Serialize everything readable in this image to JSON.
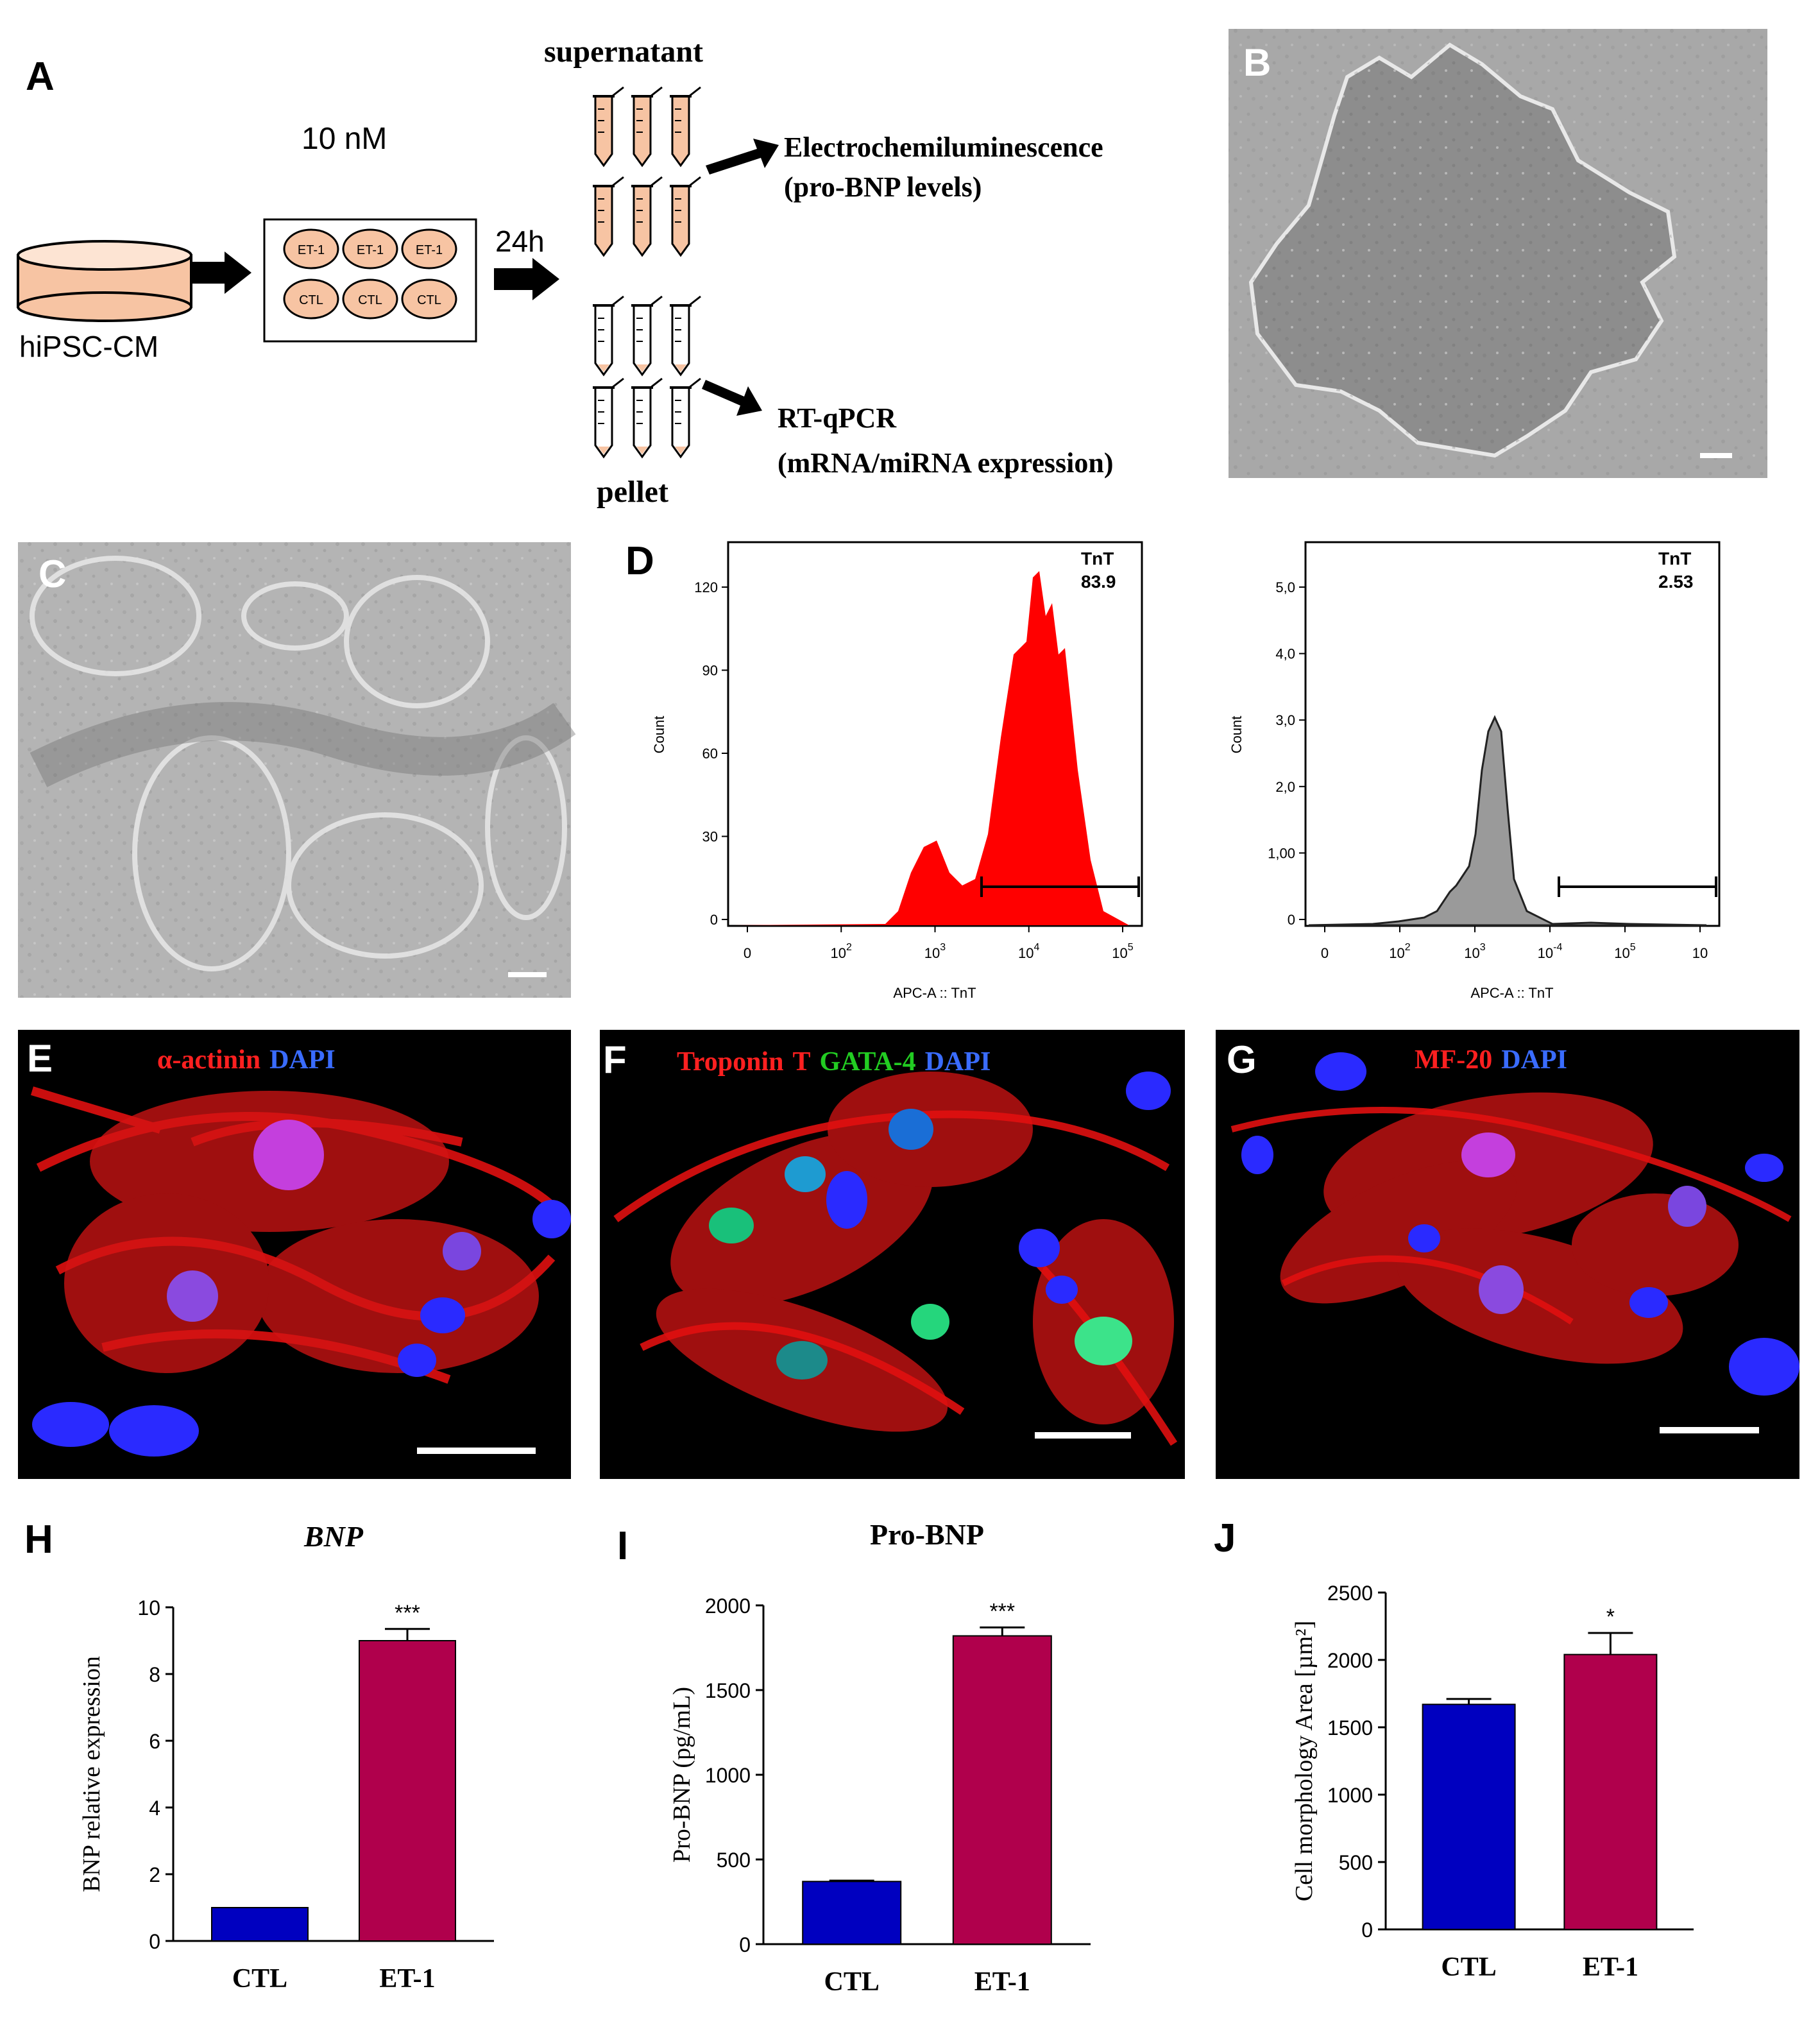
{
  "panels": {
    "A": "A",
    "B": "B",
    "C": "C",
    "D": "D",
    "E": "E",
    "F": "F",
    "G": "G",
    "H": "H",
    "I": "I",
    "J": "J"
  },
  "schematic": {
    "dish_label": "hiPSC-CM",
    "concentration": "10 nM",
    "wells_top": [
      "ET-1",
      "ET-1",
      "ET-1"
    ],
    "wells_bottom": [
      "CTL",
      "CTL",
      "CTL"
    ],
    "time": "24h",
    "supernatant": "supernatant",
    "pellet": "pellet",
    "assay1_line1": "Electrochemiluminescence",
    "assay1_line2": "(pro-BNP  levels)",
    "assay2_line1": "RT-qPCR",
    "assay2_line2": "(mRNA/miRNA  expression)"
  },
  "flow": {
    "left": {
      "gate_name": "TnT",
      "gate_value": "83.9",
      "ylabel": "Count",
      "xlabel": "APC-A :: TnT",
      "yticks": [
        "0",
        "30",
        "60",
        "90",
        "120"
      ],
      "xticks": [
        "0",
        "10",
        "10",
        "10",
        "10"
      ],
      "xexp": [
        "",
        "2",
        "3",
        "4",
        "5"
      ],
      "color": "#ff0000"
    },
    "right": {
      "gate_name": "TnT",
      "gate_value": "2.53",
      "ylabel": "Count",
      "xlabel": "APC-A :: TnT",
      "yticks": [
        "0",
        "1,00",
        "2,0",
        "3,0",
        "4,0",
        "5,0"
      ],
      "xticks": [
        "0",
        "10",
        "10",
        "10",
        "10",
        "10"
      ],
      "xexp": [
        "",
        "2",
        "3",
        "-4",
        "5",
        ""
      ],
      "color": "#999999"
    }
  },
  "stains": {
    "E": [
      {
        "text": "α-actinin",
        "color": "#ff2020"
      },
      {
        "text": "DAPI",
        "color": "#3a6cff"
      }
    ],
    "F": [
      {
        "text": "Troponin",
        "color": "#ff2020"
      },
      {
        "text": "T",
        "color": "#ff2020"
      },
      {
        "text": "GATA-4",
        "color": "#22cc22"
      },
      {
        "text": "DAPI",
        "color": "#3a6cff"
      }
    ],
    "G": [
      {
        "text": "MF-20",
        "color": "#ff2020"
      },
      {
        "text": "DAPI",
        "color": "#3a6cff"
      }
    ]
  },
  "chart_data": [
    {
      "type": "bar",
      "title": "BNP",
      "ylabel": "BNP relative expression",
      "categories": [
        "CTL",
        "ET-1"
      ],
      "values": [
        1.0,
        9.0
      ],
      "errors": [
        0.0,
        0.35
      ],
      "ylim": [
        0,
        10
      ],
      "yticks": [
        "0",
        "2",
        "4",
        "6",
        "8",
        "10"
      ],
      "significance": [
        "",
        "***"
      ],
      "colors": [
        "#0000c0",
        "#b0004c"
      ]
    },
    {
      "type": "bar",
      "title": "Pro-BNP",
      "ylabel": "Pro-BNP (pg/mL)",
      "categories": [
        "CTL",
        "ET-1"
      ],
      "values": [
        370,
        1820
      ],
      "errors": [
        5,
        50
      ],
      "ylim": [
        0,
        2000
      ],
      "yticks": [
        "0",
        "500",
        "1000",
        "1500",
        "2000"
      ],
      "significance": [
        "",
        "***"
      ],
      "colors": [
        "#0000c0",
        "#b0004c"
      ]
    },
    {
      "type": "bar",
      "title": "",
      "ylabel": "Cell morphology Area [µm²]",
      "categories": [
        "CTL",
        "ET-1"
      ],
      "values": [
        1670,
        2040
      ],
      "errors": [
        40,
        160
      ],
      "ylim": [
        0,
        2500
      ],
      "yticks": [
        "0",
        "500",
        "1000",
        "1500",
        "2000",
        "2500"
      ],
      "significance": [
        "",
        "*"
      ],
      "colors": [
        "#0000c0",
        "#b0004c"
      ]
    }
  ]
}
